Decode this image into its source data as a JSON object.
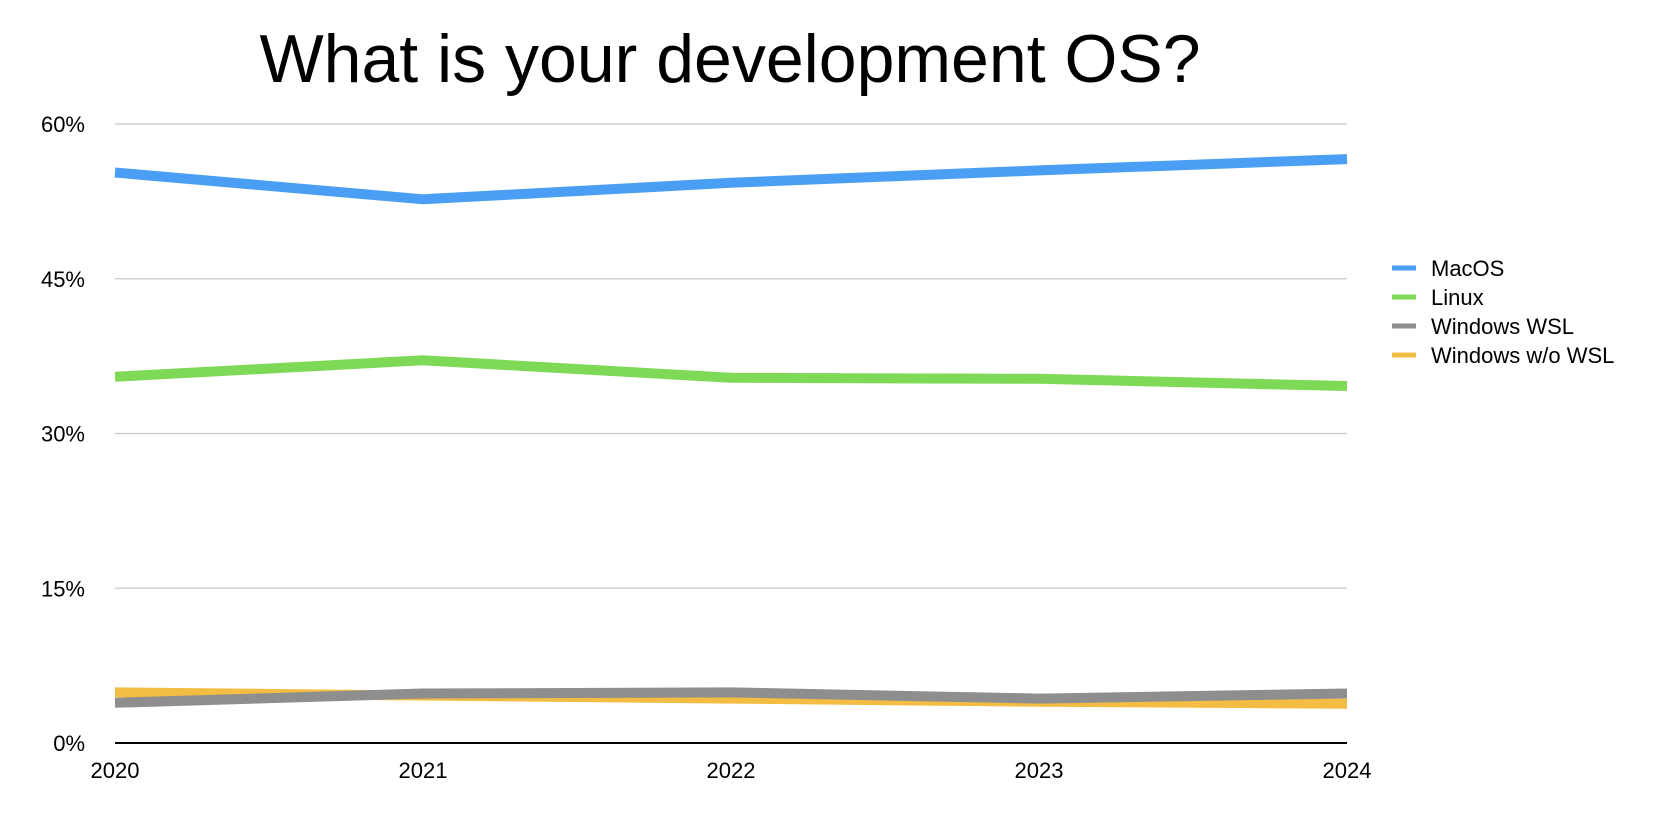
{
  "chart_data": {
    "type": "line",
    "title": "What is your development OS?",
    "xlabel": "",
    "ylabel": "",
    "categories": [
      "2020",
      "2021",
      "2022",
      "2023",
      "2024"
    ],
    "ylim": [
      0,
      60
    ],
    "yticks": [
      0,
      15,
      30,
      45,
      60
    ],
    "ytick_labels": [
      "0%",
      "15%",
      "30%",
      "45%",
      "60%"
    ],
    "grid": true,
    "legend_position": "right",
    "series": [
      {
        "name": "MacOS",
        "color": "#4A9FF5",
        "values": [
          55.3,
          52.7,
          54.3,
          55.5,
          56.6
        ]
      },
      {
        "name": "Linux",
        "color": "#7ED957",
        "values": [
          35.5,
          37.1,
          35.4,
          35.3,
          34.6
        ]
      },
      {
        "name": "Windows WSL",
        "color": "#8E8E8E",
        "values": [
          3.9,
          4.8,
          4.9,
          4.3,
          4.8
        ]
      },
      {
        "name": "Windows w/o WSL",
        "color": "#F2BD42",
        "values": [
          4.9,
          4.6,
          4.3,
          4.0,
          3.8
        ]
      }
    ]
  }
}
